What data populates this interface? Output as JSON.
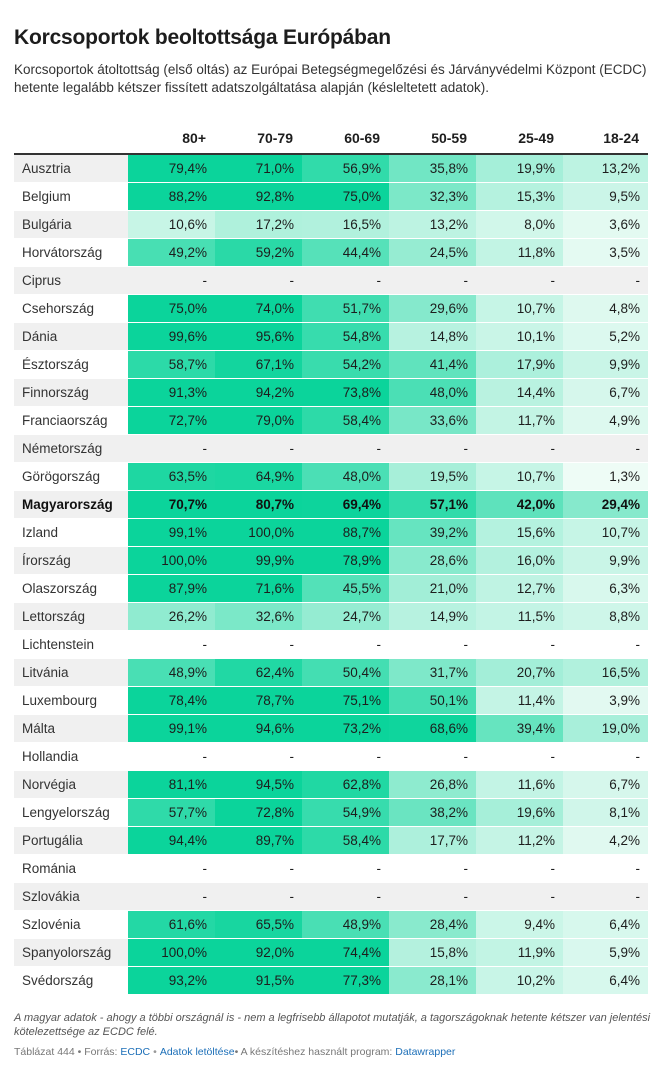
{
  "title": "Korcsoportok beoltottsága Európában",
  "subtitle": "Korcsoportok átoltottság (első oltás) az Európai Betegségmegelőzési és Járványvédelmi Központ (ECDC) hetente legalább kétszer fissített adatszolgáltatása alapján (késleltetett adatok).",
  "chart_data": {
    "type": "table",
    "columns": [
      "80+",
      "70-79",
      "60-69",
      "50-59",
      "25-49",
      "18-24"
    ],
    "rows": [
      {
        "country": "Ausztria",
        "values": [
          "79,4%",
          "71,0%",
          "56,9%",
          "35,8%",
          "19,9%",
          "13,2%"
        ]
      },
      {
        "country": "Belgium",
        "values": [
          "88,2%",
          "92,8%",
          "75,0%",
          "32,3%",
          "15,3%",
          "9,5%"
        ]
      },
      {
        "country": "Bulgária",
        "values": [
          "10,6%",
          "17,2%",
          "16,5%",
          "13,2%",
          "8,0%",
          "3,6%"
        ]
      },
      {
        "country": "Horvátország",
        "values": [
          "49,2%",
          "59,2%",
          "44,4%",
          "24,5%",
          "11,8%",
          "3,5%"
        ]
      },
      {
        "country": "Ciprus",
        "values": [
          "-",
          "-",
          "-",
          "-",
          "-",
          "-"
        ]
      },
      {
        "country": "Csehország",
        "values": [
          "75,0%",
          "74,0%",
          "51,7%",
          "29,6%",
          "10,7%",
          "4,8%"
        ]
      },
      {
        "country": "Dánia",
        "values": [
          "99,6%",
          "95,6%",
          "54,8%",
          "14,8%",
          "10,1%",
          "5,2%"
        ]
      },
      {
        "country": "Észtország",
        "values": [
          "58,7%",
          "67,1%",
          "54,2%",
          "41,4%",
          "17,9%",
          "9,9%"
        ]
      },
      {
        "country": "Finnország",
        "values": [
          "91,3%",
          "94,2%",
          "73,8%",
          "48,0%",
          "14,4%",
          "6,7%"
        ]
      },
      {
        "country": "Franciaország",
        "values": [
          "72,7%",
          "79,0%",
          "58,4%",
          "33,6%",
          "11,7%",
          "4,9%"
        ]
      },
      {
        "country": "Németország",
        "values": [
          "-",
          "-",
          "-",
          "-",
          "-",
          "-"
        ]
      },
      {
        "country": "Görögország",
        "values": [
          "63,5%",
          "64,9%",
          "48,0%",
          "19,5%",
          "10,7%",
          "1,3%"
        ]
      },
      {
        "country": "Magyarország",
        "highlight": true,
        "values": [
          "70,7%",
          "80,7%",
          "69,4%",
          "57,1%",
          "42,0%",
          "29,4%"
        ]
      },
      {
        "country": "Izland",
        "values": [
          "99,1%",
          "100,0%",
          "88,7%",
          "39,2%",
          "15,6%",
          "10,7%"
        ]
      },
      {
        "country": "Írország",
        "values": [
          "100,0%",
          "99,9%",
          "78,9%",
          "28,6%",
          "16,0%",
          "9,9%"
        ]
      },
      {
        "country": "Olaszország",
        "values": [
          "87,9%",
          "71,6%",
          "45,5%",
          "21,0%",
          "12,7%",
          "6,3%"
        ]
      },
      {
        "country": "Lettország",
        "values": [
          "26,2%",
          "32,6%",
          "24,7%",
          "14,9%",
          "11,5%",
          "8,8%"
        ]
      },
      {
        "country": "Lichtenstein",
        "values": [
          "-",
          "-",
          "-",
          "-",
          "-",
          "-"
        ]
      },
      {
        "country": "Litvánia",
        "values": [
          "48,9%",
          "62,4%",
          "50,4%",
          "31,7%",
          "20,7%",
          "16,5%"
        ]
      },
      {
        "country": "Luxembourg",
        "values": [
          "78,4%",
          "78,7%",
          "75,1%",
          "50,1%",
          "11,4%",
          "3,9%"
        ]
      },
      {
        "country": "Málta",
        "values": [
          "99,1%",
          "94,6%",
          "73,2%",
          "68,6%",
          "39,4%",
          "19,0%"
        ]
      },
      {
        "country": "Hollandia",
        "values": [
          "-",
          "-",
          "-",
          "-",
          "-",
          "-"
        ]
      },
      {
        "country": "Norvégia",
        "values": [
          "81,1%",
          "94,5%",
          "62,8%",
          "26,8%",
          "11,6%",
          "6,7%"
        ]
      },
      {
        "country": "Lengyelország",
        "values": [
          "57,7%",
          "72,8%",
          "54,9%",
          "38,2%",
          "19,6%",
          "8,1%"
        ]
      },
      {
        "country": "Portugália",
        "values": [
          "94,4%",
          "89,7%",
          "58,4%",
          "17,7%",
          "11,2%",
          "4,2%"
        ]
      },
      {
        "country": "Románia",
        "values": [
          "-",
          "-",
          "-",
          "-",
          "-",
          "-"
        ]
      },
      {
        "country": "Szlovákia",
        "values": [
          "-",
          "-",
          "-",
          "-",
          "-",
          "-"
        ]
      },
      {
        "country": "Szlovénia",
        "values": [
          "61,6%",
          "65,5%",
          "48,9%",
          "28,4%",
          "9,4%",
          "6,4%"
        ]
      },
      {
        "country": "Spanyolország",
        "values": [
          "100,0%",
          "92,0%",
          "74,4%",
          "15,8%",
          "11,9%",
          "5,9%"
        ]
      },
      {
        "country": "Svédország",
        "values": [
          "93,2%",
          "91,5%",
          "77,3%",
          "28,1%",
          "10,2%",
          "6,4%"
        ]
      }
    ],
    "color_scale": {
      "low": "#f6fdf9",
      "high": "#0bd49b",
      "domain": [
        0,
        70
      ]
    }
  },
  "notes": "A magyar adatok - ahogy a többi országnál is - nem a legfrisebb állapotot mutatják, a tagországoknak hetente kétszer van jelentési kötelezettsége az ECDC felé.",
  "footer": {
    "prefix": "Táblázat 444 • Forrás: ",
    "source": "ECDC",
    "sep": "•",
    "download": "Adatok letöltése",
    "tool_prefix": "• A készítéshez használt program: ",
    "tool": "Datawrapper"
  }
}
